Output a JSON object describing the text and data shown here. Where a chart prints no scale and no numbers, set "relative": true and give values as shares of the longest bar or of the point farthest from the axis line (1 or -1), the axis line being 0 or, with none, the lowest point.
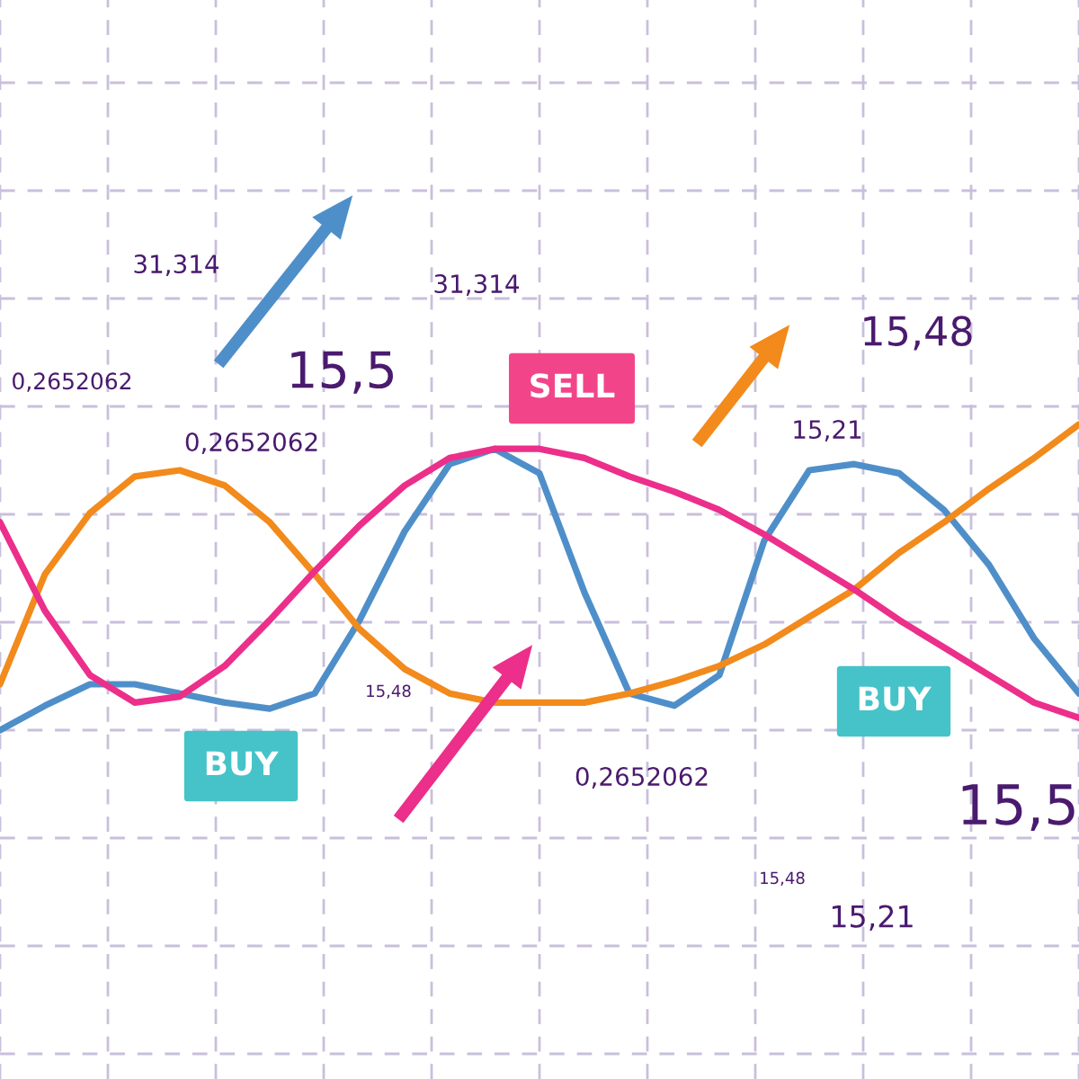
{
  "chart_data": {
    "type": "line",
    "relative": true,
    "grid": true,
    "tick_labels": false,
    "marker": "none",
    "line_style": "solid",
    "categories": [
      null,
      null,
      null,
      null,
      null,
      null,
      null,
      null,
      null,
      null,
      null,
      null,
      null,
      null,
      null,
      null,
      null,
      null,
      null,
      null,
      null,
      null,
      null,
      null,
      null
    ],
    "series": [
      {
        "color": "#4f8fc9",
        "values": [
          0,
          0.08,
          0.15,
          0.15,
          0.12,
          0.09,
          0.07,
          0.12,
          0.36,
          0.65,
          0.87,
          0.92,
          0.84,
          0.45,
          0.12,
          0.08,
          0.18,
          0.62,
          0.85,
          0.87,
          0.84,
          0.72,
          0.54,
          0.3,
          0.12
        ]
      },
      {
        "color": "#f28a1c",
        "values": [
          0.15,
          0.51,
          0.71,
          0.83,
          0.85,
          0.8,
          0.68,
          0.51,
          0.33,
          0.2,
          0.12,
          0.09,
          0.09,
          0.09,
          0.12,
          0.16,
          0.21,
          0.28,
          0.37,
          0.46,
          0.58,
          0.68,
          0.79,
          0.89,
          1.0
        ]
      },
      {
        "color": "#ec2f8a",
        "values": [
          0.68,
          0.39,
          0.18,
          0.09,
          0.11,
          0.21,
          0.36,
          0.52,
          0.67,
          0.8,
          0.89,
          0.92,
          0.92,
          0.89,
          0.83,
          0.78,
          0.72,
          0.64,
          0.55,
          0.46,
          0.36,
          0.27,
          0.18,
          0.09,
          0.04
        ]
      }
    ],
    "annotations": [
      "31,314",
      "31,314",
      "0,2652062",
      "0,2652062",
      "15,5",
      "15,48",
      "15,21",
      "SELL",
      "BUY",
      "BUY",
      "15,48",
      "0,2652062",
      "15,5",
      "15,48",
      "15,21"
    ]
  }
}
